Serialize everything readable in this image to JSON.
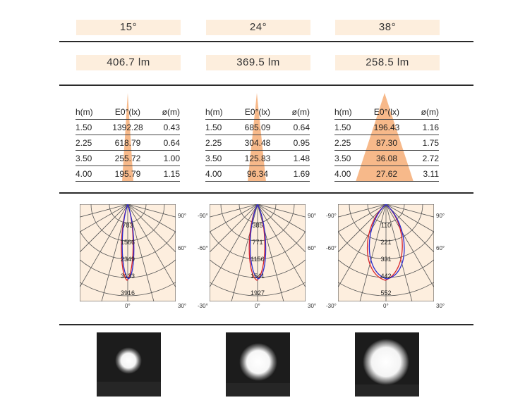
{
  "columns": [
    {
      "beam_angle": "15°",
      "lumens": "406.7 lm",
      "table": {
        "headers": [
          "h(m)",
          "E0°(lx)",
          "ø(m)"
        ],
        "rows": [
          [
            "1.50",
            "1392.28",
            "0.43"
          ],
          [
            "2.25",
            "618.79",
            "0.64"
          ],
          [
            "3.50",
            "255.72",
            "1.00"
          ],
          [
            "4.00",
            "195.79",
            "1.15"
          ]
        ]
      },
      "polar": {
        "ring_labels": [
          "783",
          "1566",
          "2349",
          "3133",
          "3916"
        ],
        "angle_left": [],
        "angle_right": [
          "90°",
          "60°",
          "30°"
        ],
        "angle_bottom": "0°"
      }
    },
    {
      "beam_angle": "24°",
      "lumens": "369.5 lm",
      "table": {
        "headers": [
          "h(m)",
          "E0°(lx)",
          "ø(m)"
        ],
        "rows": [
          [
            "1.50",
            "685.09",
            "0.64"
          ],
          [
            "2.25",
            "304.48",
            "0.95"
          ],
          [
            "3.50",
            "125.83",
            "1.48"
          ],
          [
            "4.00",
            "96.34",
            "1.69"
          ]
        ]
      },
      "polar": {
        "ring_labels": [
          "385",
          "771",
          "1156",
          "1541",
          "1927"
        ],
        "angle_left": [
          "-90°",
          "-60°",
          "-30°"
        ],
        "angle_right": [
          "90°",
          "60°",
          "30°"
        ],
        "angle_bottom": "0°"
      }
    },
    {
      "beam_angle": "38°",
      "lumens": "258.5 lm",
      "table": {
        "headers": [
          "h(m)",
          "E0°(lx)",
          "ø(m)"
        ],
        "rows": [
          [
            "1.50",
            "196.43",
            "1.16"
          ],
          [
            "2.25",
            "87.30",
            "1.75"
          ],
          [
            "3.50",
            "36.08",
            "2.72"
          ],
          [
            "4.00",
            "27.62",
            "3.11"
          ]
        ]
      },
      "polar": {
        "ring_labels": [
          "110",
          "221",
          "331",
          "442",
          "552"
        ],
        "angle_left": [
          "-90°",
          "-60°",
          "-30°"
        ],
        "angle_right": [
          "90°",
          "60°",
          "30°"
        ],
        "angle_bottom": "0°"
      }
    }
  ],
  "colors": {
    "box_fill": "#fdeedd",
    "cone_fill": "#f7b98a",
    "grid_fill": "#fdeede",
    "curve_red": "#d8232a",
    "curve_blue": "#2b2bd0"
  }
}
